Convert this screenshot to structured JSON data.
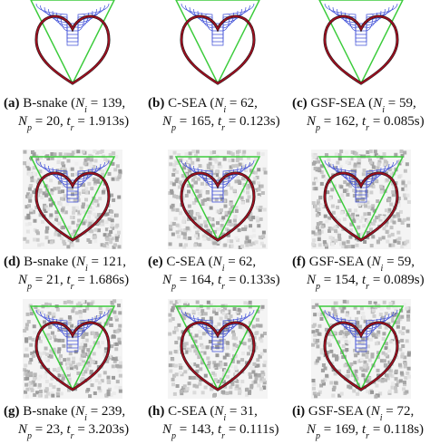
{
  "panels": [
    {
      "caption": [
        [
          "(a)",
          " B-snake (",
          "N",
          "i",
          " = 139,"
        ],
        [
          "N",
          "p",
          " = 20, ",
          "t",
          "r",
          " = 1.913s)"
        ]
      ]
    },
    {
      "caption": [
        [
          "(b)",
          " C-SEA (",
          "N",
          "i",
          " = 62,"
        ],
        [
          "N",
          "p",
          " = 165, ",
          "t",
          "r",
          " = 0.123s)"
        ]
      ]
    },
    {
      "caption": [
        [
          "(c)",
          " GSF-SEA (",
          "N",
          "i",
          " = 59,"
        ],
        [
          "N",
          "p",
          " = 162, ",
          "t",
          "r",
          " = 0.085s)"
        ]
      ]
    },
    {
      "caption": [
        [
          "(d)",
          " B-snake (",
          "N",
          "i",
          " = 121,"
        ],
        [
          "N",
          "p",
          " = 21, ",
          "t",
          "r",
          " = 1.686s)"
        ]
      ]
    },
    {
      "caption": [
        [
          "(e)",
          " C-SEA (",
          "N",
          "i",
          " = 62,"
        ],
        [
          "N",
          "p",
          " = 164, ",
          "t",
          "r",
          " = 0.133s)"
        ]
      ]
    },
    {
      "caption": [
        [
          "(f)",
          " GSF-SEA (",
          "N",
          "i",
          " = 59,"
        ],
        [
          "N",
          "p",
          " = 154, ",
          "t",
          "r",
          " = 0.089s)"
        ]
      ]
    },
    {
      "caption": [
        [
          "(g)",
          " B-snake (",
          "N",
          "i",
          " = 239,"
        ],
        [
          "N",
          "p",
          " = 23, ",
          "t",
          "r",
          " = 3.203s)"
        ]
      ]
    },
    {
      "caption": [
        [
          "(h)",
          " C-SEA (",
          "N",
          "i",
          " = 31,"
        ],
        [
          "N",
          "p",
          " = 143, ",
          "t",
          "r",
          " = 0.111s)"
        ]
      ]
    },
    {
      "caption": [
        [
          "(i)",
          " GSF-SEA (",
          "N",
          "i",
          " = 72,"
        ],
        [
          "N",
          "p",
          " = 169, ",
          "t",
          "r",
          " = 0.118s)"
        ]
      ]
    }
  ]
}
